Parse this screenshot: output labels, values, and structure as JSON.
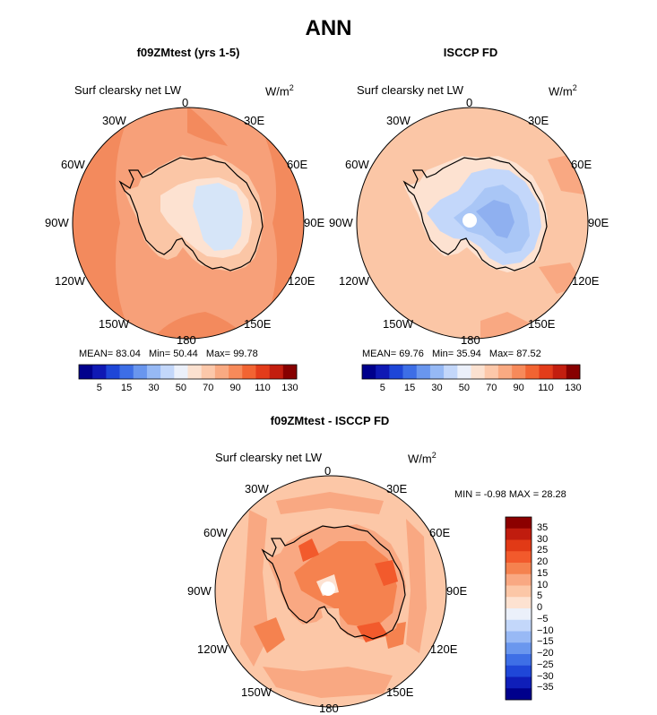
{
  "title": "ANN",
  "common": {
    "var_label": "Surf clearsky net LW",
    "units_base": "W/m",
    "units_exp": "2",
    "lon_labels": [
      "0",
      "30E",
      "60E",
      "90E",
      "120E",
      "150E",
      "180",
      "150W",
      "120W",
      "90W",
      "60W",
      "30W"
    ],
    "colors": {
      "ocean_main": "#f38a5d",
      "ocean_obs": "#fbc6a6",
      "coast": "#000000"
    }
  },
  "panels": [
    {
      "title": "f09ZMtest (yrs 1-5)",
      "stats": {
        "mean_label": "MEAN=",
        "mean": "83.04",
        "min_label": "Min=",
        "min": "50.44",
        "max_label": "Max=",
        "max": "99.78"
      }
    },
    {
      "title": "ISCCP FD",
      "stats": {
        "mean_label": "MEAN=",
        "mean": "69.76",
        "min_label": "Min=",
        "min": "35.94",
        "max_label": "Max=",
        "max": "87.52"
      }
    }
  ],
  "colorbar": {
    "colors": [
      "#00008c",
      "#0f19b4",
      "#1e46d7",
      "#3d6ee6",
      "#6996ee",
      "#96b9f5",
      "#c3d7fa",
      "#ebf0fa",
      "#fbe1d0",
      "#fcc8aa",
      "#f9aa82",
      "#f78a5a",
      "#f26432",
      "#e33c1a",
      "#c31e0f",
      "#870000"
    ],
    "labels": [
      "5",
      "15",
      "30",
      "50",
      "70",
      "90",
      "110",
      "130"
    ]
  },
  "diff": {
    "title": "f09ZMtest - ISCCP FD",
    "minmax": {
      "min_label": "MIN =",
      "min": "-0.98",
      "max_label": "MAX =",
      "max": "28.28"
    },
    "colorbar_colors": [
      "#8c0000",
      "#c01c0e",
      "#e13a16",
      "#f25a2c",
      "#f5824f",
      "#f9a882",
      "#fcc7a7",
      "#fde2d1",
      "#ebf0fa",
      "#c3d7fa",
      "#98b9f5",
      "#6a97ee",
      "#3e6fe6",
      "#1f47d8",
      "#0f1eb9",
      "#00008c"
    ],
    "colorbar_labels": [
      "35",
      "30",
      "25",
      "20",
      "15",
      "10",
      "5",
      "0",
      "−5",
      "−10",
      "−15",
      "−20",
      "−25",
      "−30",
      "−35"
    ]
  }
}
